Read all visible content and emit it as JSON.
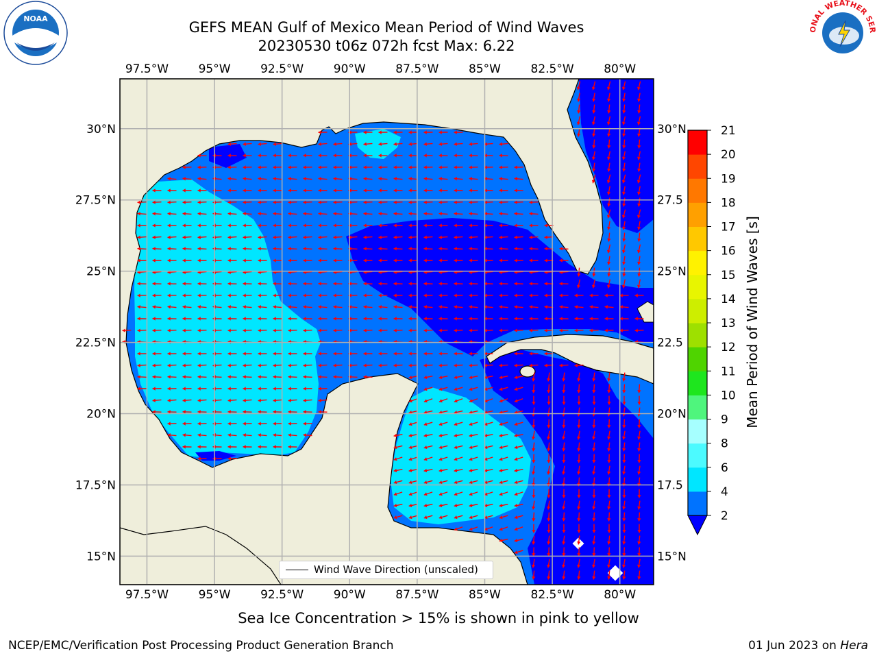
{
  "title_line1": "GEFS MEAN Gulf of Mexico Mean Period of Wind Waves",
  "title_line2": "20230530 t06z 072h fcst   Max: 6.22",
  "lon_labels": [
    "97.5°W",
    "95°W",
    "92.5°W",
    "90°W",
    "87.5°W",
    "85°W",
    "82.5°W",
    "80°W"
  ],
  "lat_labels_left": [
    "30°N",
    "27.5°N",
    "25°N",
    "22.5°N",
    "20°N",
    "17.5°N",
    "15°N"
  ],
  "lat_labels_right": [
    "30°N",
    "27.5",
    "25°N",
    "22.5",
    "20°N",
    "17.5",
    "15°N"
  ],
  "colorbar": {
    "label": "Mean Period of Wind Waves [s]",
    "ticks": [
      "21",
      "20",
      "19",
      "18",
      "17",
      "16",
      "15",
      "14",
      "13",
      "12",
      "11",
      "10",
      "9",
      "8",
      "6",
      "4",
      "2"
    ],
    "levels": [
      2,
      4,
      6,
      8,
      9,
      10,
      11,
      12,
      13,
      14,
      15,
      16,
      17,
      18,
      19,
      20,
      21
    ],
    "colors": [
      "#0073ff",
      "#00e6ff",
      "#4cfaff",
      "#a6ffff",
      "#4ff57d",
      "#1ee61e",
      "#4fd400",
      "#9ee000",
      "#cdee00",
      "#e8f500",
      "#fff200",
      "#ffc800",
      "#ffa000",
      "#ff7800",
      "#ff4600",
      "#ff0000"
    ],
    "under_color": "#0000ff"
  },
  "map": {
    "lon_range": [
      -98.5,
      -78.75
    ],
    "lat_range": [
      14.0,
      31.75
    ],
    "land_color": "#efeedb",
    "arrow_color": "#ff0000",
    "period_colors": {
      "2-4 s": "#0073ff",
      "4-6 s": "#00e6ff",
      "<2 s": "#0000ff"
    }
  },
  "legend_text": "Wind Wave Direction (unscaled)",
  "subnote": "Sea Ice Concentration > 15% is shown in pink to yellow",
  "footer_left": "NCEP/EMC/Verification Post Processing Product Generation Branch",
  "footer_right_date": "01 Jun 2023 on ",
  "footer_right_host": "Hera",
  "logos": {
    "left": "NOAA",
    "right": "NATIONAL WEATHER SERVICE"
  }
}
